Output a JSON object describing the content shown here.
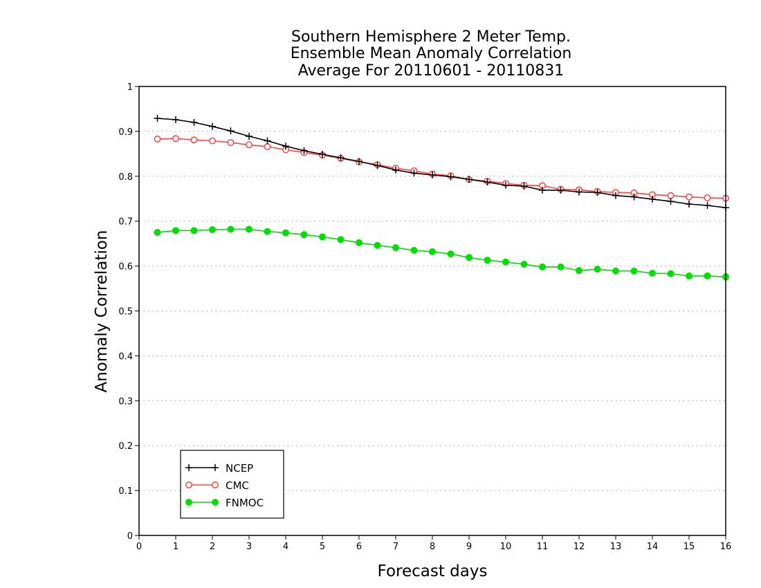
{
  "chart_data": {
    "type": "line",
    "title": [
      "Southern Hemisphere 2 Meter Temp.",
      "Ensemble Mean Anomaly Correlation",
      "Average For 20110601 - 20110831"
    ],
    "xlabel": "Forecast days",
    "ylabel": "Anomaly Correlation",
    "xlim": [
      0,
      16
    ],
    "ylim": [
      0,
      1
    ],
    "xticks": [
      "0",
      "1",
      "2",
      "3",
      "4",
      "5",
      "6",
      "7",
      "8",
      "9",
      "10",
      "11",
      "12",
      "13",
      "14",
      "15",
      "16"
    ],
    "yticks": [
      "0",
      "0.1",
      "0.2",
      "0.3",
      "0.4",
      "0.5",
      "0.6",
      "0.7",
      "0.8",
      "0.9",
      "1"
    ],
    "grid": "horizontal-dotted",
    "legend_position": "bottom-left",
    "x": [
      0.5,
      1,
      1.5,
      2,
      2.5,
      3,
      3.5,
      4,
      4.5,
      5,
      5.5,
      6,
      6.5,
      7,
      7.5,
      8,
      8.5,
      9,
      9.5,
      10,
      10.5,
      11,
      11.5,
      12,
      12.5,
      13,
      13.5,
      14,
      14.5,
      15,
      15.5,
      16
    ],
    "series": [
      {
        "name": "NCEP",
        "color": "#000000",
        "marker": "plus",
        "values": [
          0.929,
          0.926,
          0.92,
          0.911,
          0.901,
          0.889,
          0.879,
          0.867,
          0.857,
          0.849,
          0.841,
          0.833,
          0.824,
          0.814,
          0.807,
          0.803,
          0.799,
          0.793,
          0.787,
          0.78,
          0.778,
          0.769,
          0.769,
          0.765,
          0.764,
          0.757,
          0.754,
          0.749,
          0.744,
          0.738,
          0.735,
          0.73
        ]
      },
      {
        "name": "CMC",
        "color": "#ff4040",
        "marker": "circle-open",
        "values": [
          0.883,
          0.884,
          0.881,
          0.879,
          0.875,
          0.87,
          0.866,
          0.859,
          0.853,
          0.847,
          0.84,
          0.832,
          0.826,
          0.818,
          0.812,
          0.805,
          0.801,
          0.793,
          0.789,
          0.784,
          0.78,
          0.779,
          0.771,
          0.77,
          0.766,
          0.764,
          0.763,
          0.759,
          0.757,
          0.754,
          0.752,
          0.751
        ]
      },
      {
        "name": "FNMOC",
        "color": "#00dd00",
        "marker": "circle-filled",
        "values": [
          0.675,
          0.679,
          0.679,
          0.681,
          0.682,
          0.682,
          0.677,
          0.674,
          0.67,
          0.665,
          0.659,
          0.652,
          0.646,
          0.641,
          0.635,
          0.632,
          0.627,
          0.619,
          0.613,
          0.609,
          0.604,
          0.598,
          0.598,
          0.59,
          0.593,
          0.589,
          0.589,
          0.584,
          0.583,
          0.578,
          0.578,
          0.576
        ]
      }
    ]
  }
}
